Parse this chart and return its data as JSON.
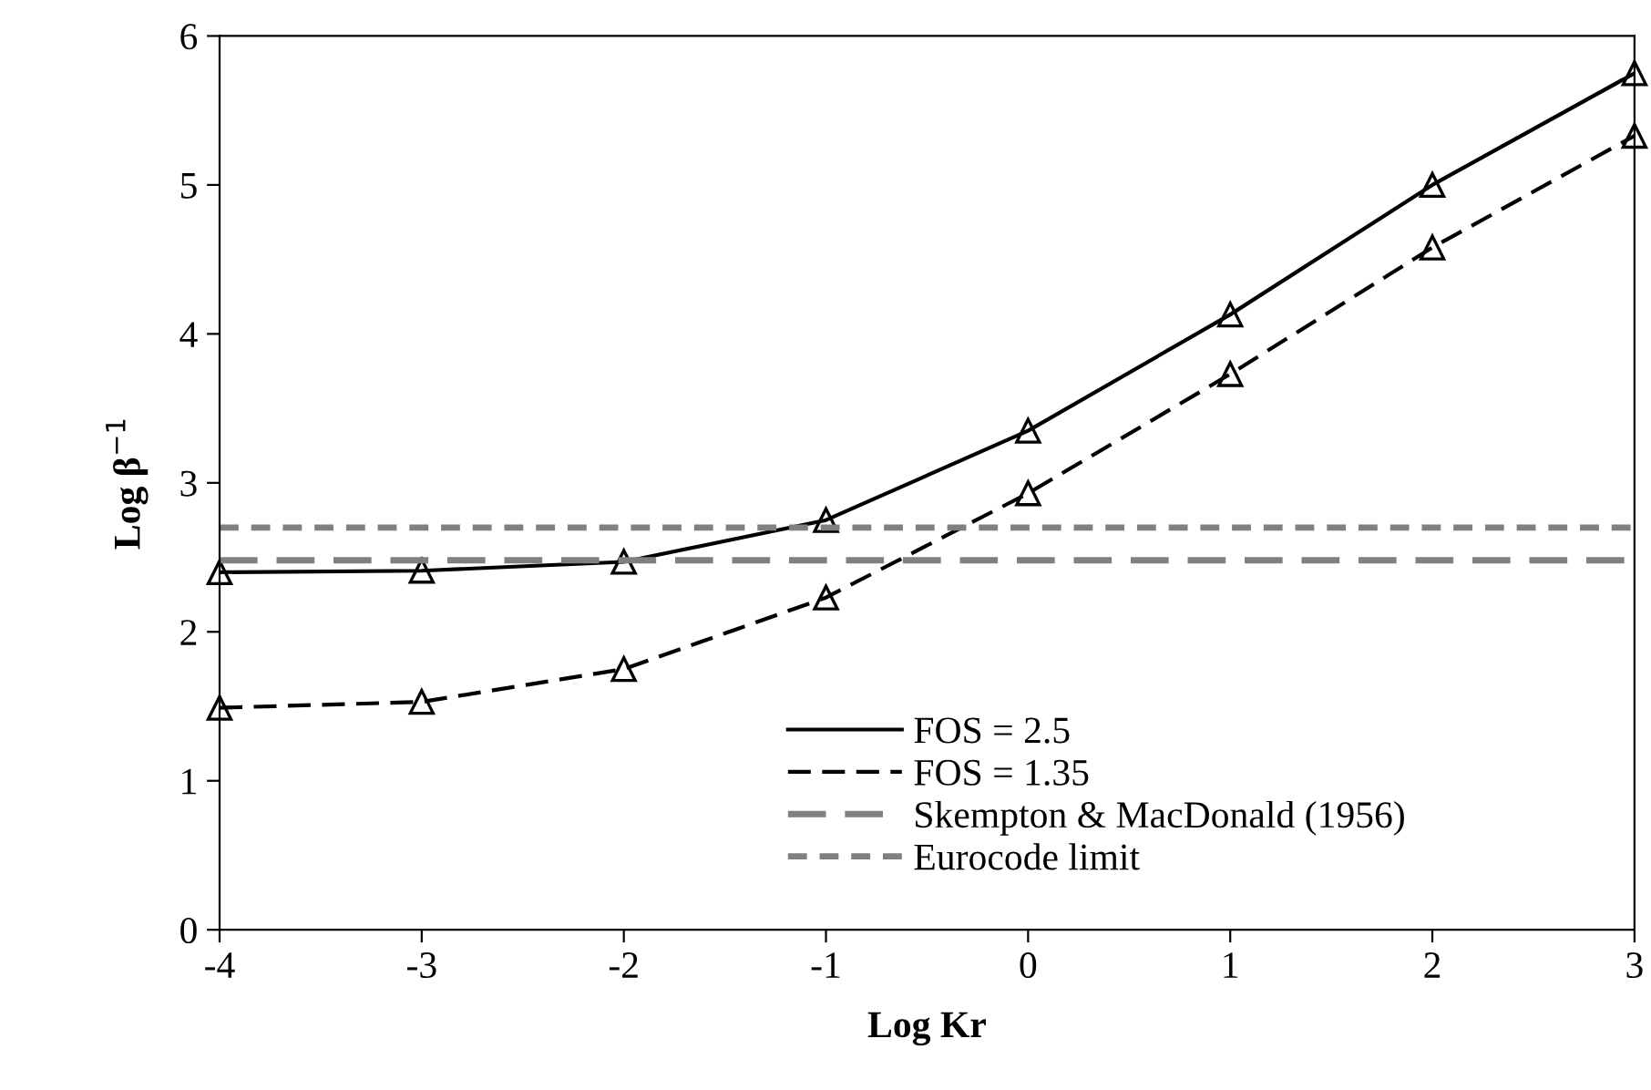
{
  "chart_data": {
    "type": "line",
    "xlabel": "Log Kr",
    "ylabel": "Log β$^{−1}$",
    "x": [
      -4,
      -3,
      -2,
      -1,
      0,
      1,
      2,
      3
    ],
    "series": [
      {
        "name": "FOS = 2.5",
        "color": "#000000",
        "line_style": "solid",
        "marker": "triangle",
        "values": [
          2.4,
          2.41,
          2.47,
          2.75,
          3.35,
          4.13,
          5.0,
          5.75
        ]
      },
      {
        "name": "FOS = 1.35",
        "color": "#000000",
        "line_style": "dashed",
        "marker": "triangle",
        "values": [
          1.49,
          1.53,
          1.75,
          2.23,
          2.93,
          3.73,
          4.58,
          5.33
        ]
      }
    ],
    "ref_lines": [
      {
        "axis": "y",
        "value": 2.48,
        "label": "Skempton & MacDonald (1956)",
        "color": "#808080",
        "line_style": "dashed"
      },
      {
        "axis": "y",
        "value": 2.7,
        "label": "Eurocode limit",
        "color": "#808080",
        "line_style": "dotted"
      }
    ],
    "xlim": [
      -4,
      3
    ],
    "xticks": [
      -4,
      -3,
      -2,
      -1,
      0,
      1,
      2,
      3
    ],
    "ylim": [
      0,
      6
    ],
    "yticks": [
      0,
      1,
      2,
      3,
      4,
      5,
      6
    ],
    "grid": false,
    "legend": "bottom"
  }
}
